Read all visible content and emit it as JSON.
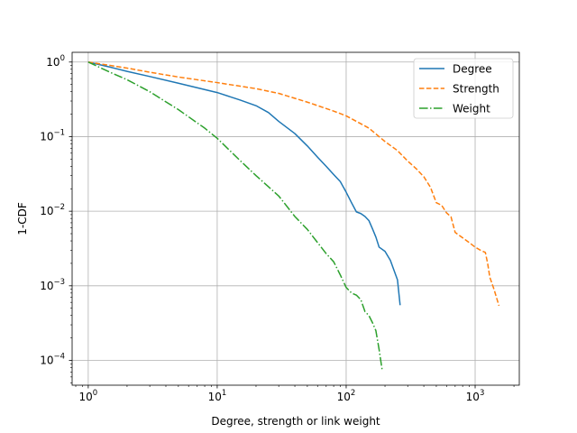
{
  "chart_data": {
    "type": "line",
    "xlabel": "Degree, strength or link weight",
    "ylabel": "1-CDF",
    "xscale": "log",
    "yscale": "log",
    "xlim": [
      0.75,
      2200
    ],
    "ylim": [
      4.65e-05,
      1.35
    ],
    "grid": true,
    "legend_position": "top-right",
    "x_ticks": [
      {
        "value": 1,
        "base": "10",
        "exp": "0"
      },
      {
        "value": 10,
        "base": "10",
        "exp": "1"
      },
      {
        "value": 100,
        "base": "10",
        "exp": "2"
      },
      {
        "value": 1000,
        "base": "10",
        "exp": "3"
      }
    ],
    "y_ticks": [
      {
        "value": 1,
        "base": "10",
        "exp": "0"
      },
      {
        "value": 0.1,
        "base": "10",
        "exp": "−1"
      },
      {
        "value": 0.01,
        "base": "10",
        "exp": "−2"
      },
      {
        "value": 0.001,
        "base": "10",
        "exp": "−3"
      },
      {
        "value": 0.0001,
        "base": "10",
        "exp": "−4"
      }
    ],
    "series": [
      {
        "name": "Degree",
        "color": "#1f77b4",
        "dash": "solid",
        "x": [
          1,
          1.5,
          2,
          3,
          5,
          10,
          15,
          20,
          25,
          30,
          40,
          50,
          60,
          70,
          80,
          90,
          100,
          110,
          120,
          130,
          140,
          150,
          160,
          170,
          180,
          200,
          220,
          250,
          262
        ],
        "y": [
          1,
          0.85,
          0.75,
          0.64,
          0.52,
          0.39,
          0.31,
          0.26,
          0.21,
          0.16,
          0.11,
          0.075,
          0.053,
          0.04,
          0.031,
          0.025,
          0.018,
          0.013,
          0.0098,
          0.0093,
          0.0085,
          0.0075,
          0.0058,
          0.0045,
          0.0033,
          0.0029,
          0.0022,
          0.0012,
          0.00055
        ]
      },
      {
        "name": "Strength",
        "color": "#ff7f0e",
        "dash": "dashed",
        "x": [
          1,
          2,
          3,
          5,
          10,
          20,
          30,
          50,
          80,
          100,
          150,
          200,
          250,
          300,
          350,
          400,
          450,
          500,
          550,
          600,
          650,
          700,
          800,
          900,
          1000,
          1100,
          1200,
          1250,
          1300,
          1400,
          1530
        ],
        "y": [
          1,
          0.83,
          0.73,
          0.63,
          0.53,
          0.44,
          0.38,
          0.29,
          0.22,
          0.19,
          0.13,
          0.086,
          0.065,
          0.047,
          0.037,
          0.029,
          0.021,
          0.013,
          0.012,
          0.0095,
          0.0084,
          0.0052,
          0.0044,
          0.0038,
          0.0033,
          0.003,
          0.0028,
          0.002,
          0.0013,
          0.0009,
          0.00054
        ]
      },
      {
        "name": "Weight",
        "color": "#2ca02c",
        "dash": "dashdot",
        "x": [
          1,
          1.5,
          2,
          3,
          5,
          8,
          10,
          15,
          20,
          30,
          40,
          50,
          60,
          70,
          80,
          90,
          100,
          110,
          120,
          130,
          140,
          150,
          160,
          170,
          180,
          190
        ],
        "y": [
          1,
          0.72,
          0.58,
          0.4,
          0.23,
          0.13,
          0.095,
          0.048,
          0.03,
          0.016,
          0.0085,
          0.0057,
          0.0038,
          0.0027,
          0.0021,
          0.0014,
          0.00095,
          0.0008,
          0.00075,
          0.00065,
          0.00045,
          0.0004,
          0.00032,
          0.00025,
          0.00014,
          7.5e-05
        ]
      }
    ]
  }
}
